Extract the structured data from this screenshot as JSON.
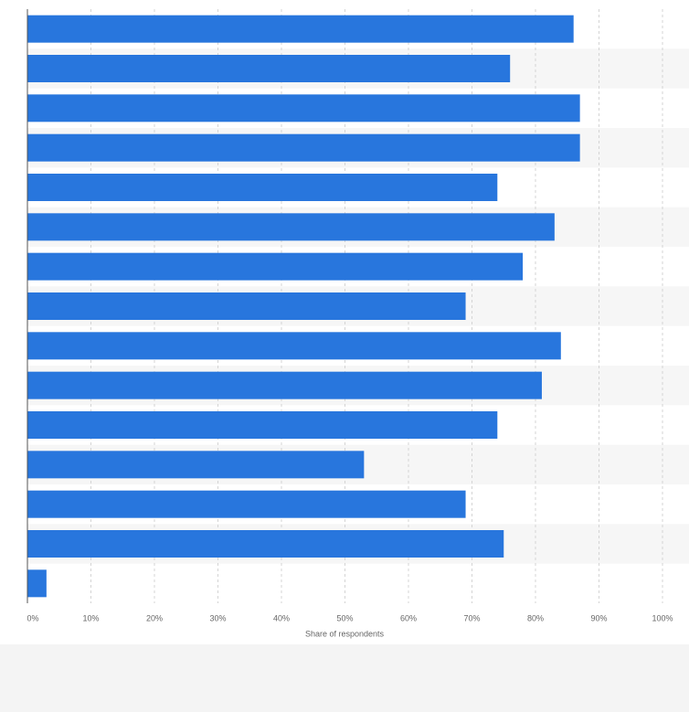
{
  "chart_data": {
    "type": "bar",
    "orientation": "horizontal",
    "x_label": "Share of respondents",
    "categories": [
      null,
      null,
      null,
      null,
      null,
      null,
      null,
      null,
      null,
      null,
      null,
      null,
      null,
      null,
      null
    ],
    "values": [
      86,
      76,
      87,
      87,
      74,
      83,
      78,
      69,
      84,
      81,
      74,
      53,
      69,
      75,
      3
    ],
    "color": "#2876dd",
    "xlim": [
      0,
      100
    ],
    "xticks": [
      {
        "value": 0,
        "label": "0%"
      },
      {
        "value": 10,
        "label": "10%"
      },
      {
        "value": 20,
        "label": "20%"
      },
      {
        "value": 30,
        "label": "30%"
      },
      {
        "value": 40,
        "label": "40%"
      },
      {
        "value": 50,
        "label": "50%"
      },
      {
        "value": 60,
        "label": "60%"
      },
      {
        "value": 70,
        "label": "70%"
      },
      {
        "value": 80,
        "label": "80%"
      },
      {
        "value": 90,
        "label": "90%"
      },
      {
        "value": 100,
        "label": "100%"
      }
    ],
    "grid": true
  }
}
